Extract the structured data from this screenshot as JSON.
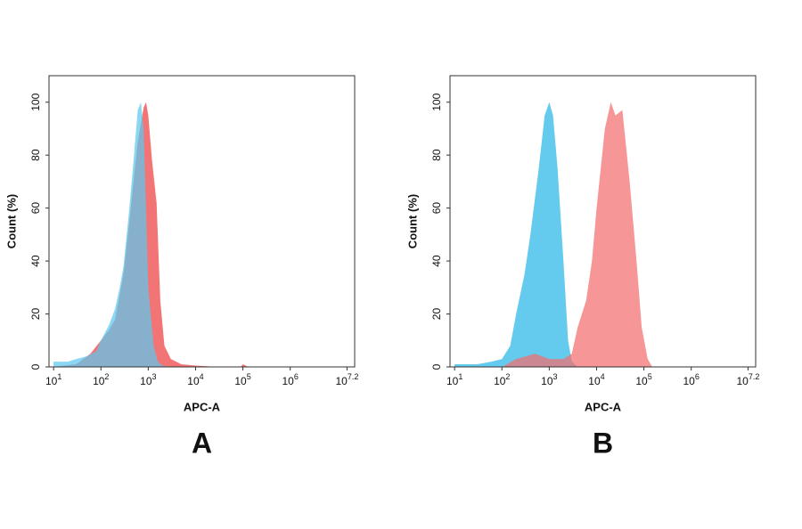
{
  "chart_data": [
    {
      "type": "area",
      "label": "A",
      "x_label": "APC-A",
      "y_label": "Count (%)",
      "xscale": "log",
      "xlim": [
        8,
        23000000
      ],
      "ylim": [
        0,
        110
      ],
      "xticks": [
        {
          "value": 10,
          "label": "10",
          "sup": "1"
        },
        {
          "value": 100,
          "label": "10",
          "sup": "2"
        },
        {
          "value": 1000,
          "label": "10",
          "sup": "3"
        },
        {
          "value": 10000,
          "label": "10",
          "sup": "4"
        },
        {
          "value": 100000,
          "label": "10",
          "sup": "5"
        },
        {
          "value": 1000000,
          "label": "10",
          "sup": "6"
        },
        {
          "value": 15848932,
          "label": "10",
          "sup": "7.2"
        }
      ],
      "yticks": [
        0,
        20,
        40,
        60,
        80,
        100
      ],
      "series": [
        {
          "color": "#f26d6d",
          "x": [
            10,
            30,
            60,
            100,
            150,
            200,
            300,
            400,
            500,
            600,
            800,
            900,
            1000,
            1200,
            1500,
            1800,
            2200,
            3000,
            5000,
            10000,
            30000,
            90000,
            100000,
            130000
          ],
          "values": [
            0,
            1,
            5,
            10,
            14,
            18,
            35,
            55,
            72,
            85,
            98,
            100,
            95,
            78,
            62,
            25,
            8,
            3,
            1,
            0.5,
            0,
            0,
            1,
            0
          ]
        },
        {
          "color": "#5cc8ee",
          "x": [
            10,
            20,
            30,
            50,
            80,
            100,
            150,
            200,
            250,
            300,
            400,
            500,
            600,
            700,
            800,
            900,
            1000,
            1300,
            1600,
            2000,
            3000
          ],
          "values": [
            2,
            2,
            3,
            4,
            6,
            10,
            16,
            22,
            30,
            38,
            60,
            80,
            97,
            100,
            90,
            60,
            30,
            8,
            2,
            0.5,
            0
          ]
        }
      ]
    },
    {
      "type": "area",
      "label": "B",
      "x_label": "APC-A",
      "y_label": "Count (%)",
      "xscale": "log",
      "xlim": [
        8,
        23000000
      ],
      "ylim": [
        0,
        110
      ],
      "xticks": [
        {
          "value": 10,
          "label": "10",
          "sup": "1"
        },
        {
          "value": 100,
          "label": "10",
          "sup": "2"
        },
        {
          "value": 1000,
          "label": "10",
          "sup": "3"
        },
        {
          "value": 10000,
          "label": "10",
          "sup": "4"
        },
        {
          "value": 100000,
          "label": "10",
          "sup": "5"
        },
        {
          "value": 1000000,
          "label": "10",
          "sup": "6"
        },
        {
          "value": 15848932,
          "label": "10",
          "sup": "7.2"
        }
      ],
      "yticks": [
        0,
        20,
        40,
        60,
        80,
        100
      ],
      "series": [
        {
          "color": "#5cc8ee",
          "x": [
            10,
            30,
            60,
            100,
            150,
            200,
            300,
            400,
            600,
            800,
            1000,
            1200,
            1500,
            2000,
            2500,
            3000,
            4000
          ],
          "values": [
            1,
            1,
            2,
            3,
            8,
            20,
            35,
            50,
            75,
            95,
            100,
            95,
            75,
            40,
            10,
            2,
            0
          ]
        },
        {
          "color": "#f26d6d",
          "x": [
            100,
            200,
            500,
            1000,
            2000,
            3000,
            4000,
            6000,
            8000,
            10000,
            15000,
            20000,
            25000,
            35000,
            50000,
            70000,
            90000,
            120000,
            150000
          ],
          "values": [
            0,
            3,
            5,
            3,
            3,
            5,
            15,
            25,
            40,
            60,
            90,
            100,
            95,
            97,
            70,
            40,
            15,
            3,
            0
          ]
        }
      ]
    }
  ]
}
